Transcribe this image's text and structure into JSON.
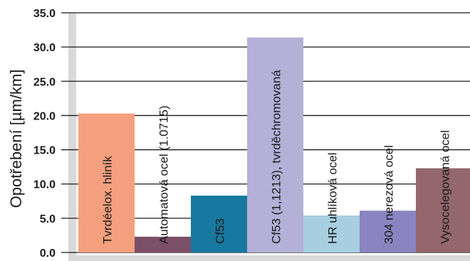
{
  "chart_data": {
    "type": "bar",
    "title": "",
    "xlabel": "",
    "ylabel": "Opotřebení [µm/km]",
    "ylim": [
      0,
      35
    ],
    "yticks": [
      "0.0",
      "5.0",
      "10.0",
      "15.0",
      "20.0",
      "25.0",
      "30.0",
      "35.0"
    ],
    "grid": true,
    "legend": "none",
    "categories": [
      "Tvrdéelox. hliník",
      "Automatová ocel (1.0715)",
      "Cf53",
      "Cf53 (1,1213), tvrděchromovaná",
      "HR uhlíková ocel",
      "304 nerezová ocel",
      "Vysocelegovaná ocel"
    ],
    "values": [
      20.3,
      2.3,
      8.3,
      31.4,
      5.4,
      6.1,
      12.3
    ],
    "colors": [
      "#f4a07e",
      "#7c4f68",
      "#17799f",
      "#b4b0d7",
      "#a8cfe0",
      "#8a84c0",
      "#93676b"
    ],
    "background_color": "#d9d9d9",
    "grid_color": "#1a1a1a"
  }
}
